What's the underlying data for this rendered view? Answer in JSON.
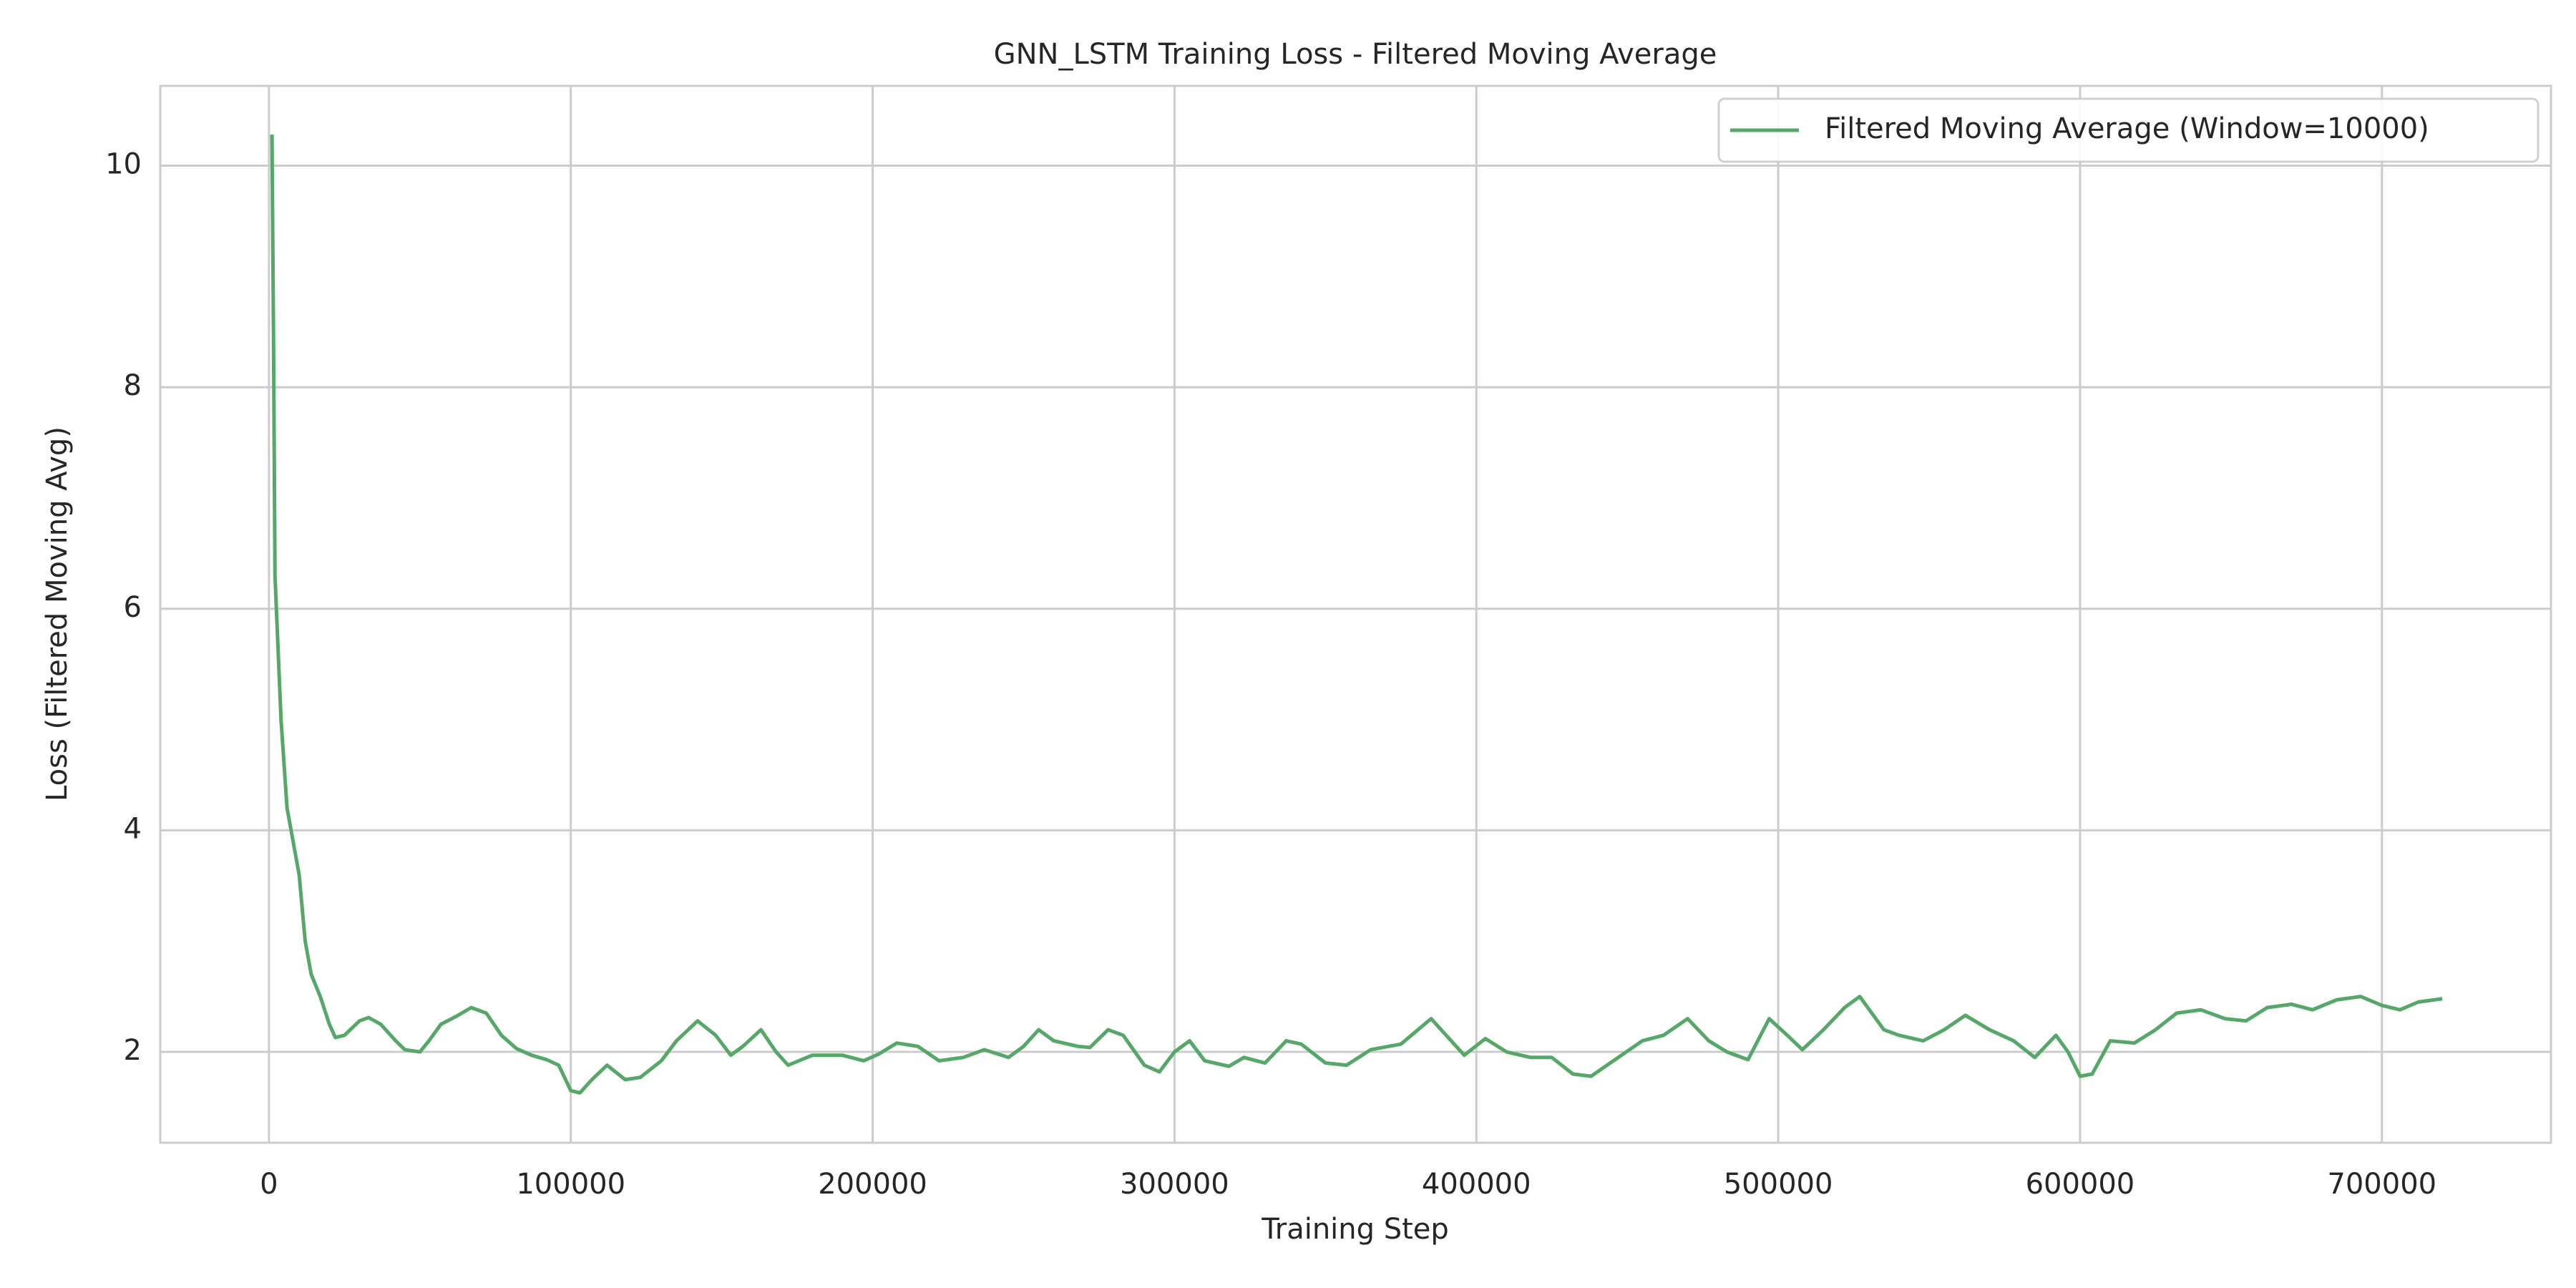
{
  "chart_data": {
    "type": "line",
    "title": "GNN_LSTM Training Loss - Filtered Moving Average",
    "x_label": "Training Step",
    "y_label": "Loss (Filtered Moving Avg)",
    "x": [
      1000,
      1500,
      2000,
      4000,
      6000,
      8000,
      10000,
      12000,
      14000,
      17000,
      20000,
      22000,
      25000,
      30000,
      33000,
      37000,
      42000,
      45000,
      50000,
      53000,
      57000,
      62000,
      67000,
      72000,
      77000,
      82000,
      87000,
      92000,
      96000,
      100000,
      103000,
      107000,
      112000,
      118000,
      123000,
      130000,
      135000,
      142000,
      148000,
      153000,
      157000,
      163000,
      168000,
      172000,
      180000,
      190000,
      197000,
      202000,
      208000,
      215000,
      222000,
      230000,
      237000,
      245000,
      250000,
      255000,
      260000,
      268000,
      272000,
      278000,
      283000,
      290000,
      295000,
      300000,
      305000,
      310000,
      318000,
      323000,
      330000,
      337000,
      342000,
      350000,
      357000,
      365000,
      375000,
      385000,
      390000,
      396000,
      403000,
      410000,
      418000,
      425000,
      432000,
      438000,
      447000,
      455000,
      462000,
      470000,
      477000,
      483000,
      490000,
      497000,
      503000,
      508000,
      515000,
      522000,
      527000,
      535000,
      540000,
      548000,
      555000,
      562000,
      570000,
      578000,
      585000,
      592000,
      596000,
      600000,
      604000,
      610000,
      618000,
      625000,
      632000,
      640000,
      648000,
      655000,
      662000,
      670000,
      677000,
      685000,
      693000,
      700000,
      706000,
      712000,
      720000
    ],
    "series": [
      {
        "name": "Filtered Moving Average (Window=10000)",
        "color": "#55a868",
        "values": [
          10.28,
          8.5,
          6.3,
          5.0,
          4.2,
          3.9,
          3.6,
          3.0,
          2.7,
          2.5,
          2.25,
          2.13,
          2.15,
          2.28,
          2.31,
          2.25,
          2.1,
          2.02,
          2.0,
          2.1,
          2.25,
          2.32,
          2.4,
          2.35,
          2.15,
          2.03,
          1.97,
          1.93,
          1.88,
          1.65,
          1.63,
          1.75,
          1.88,
          1.75,
          1.77,
          1.92,
          2.1,
          2.28,
          2.15,
          1.97,
          2.05,
          2.2,
          2.0,
          1.88,
          1.97,
          1.97,
          1.92,
          1.98,
          2.08,
          2.05,
          1.92,
          1.95,
          2.02,
          1.95,
          2.05,
          2.2,
          2.1,
          2.05,
          2.04,
          2.2,
          2.15,
          1.88,
          1.82,
          2.0,
          2.1,
          1.92,
          1.87,
          1.95,
          1.9,
          2.1,
          2.07,
          1.9,
          1.88,
          2.02,
          2.07,
          2.3,
          2.15,
          1.97,
          2.12,
          2.0,
          1.95,
          1.95,
          1.8,
          1.78,
          1.95,
          2.1,
          2.15,
          2.3,
          2.1,
          2.0,
          1.93,
          2.3,
          2.15,
          2.02,
          2.2,
          2.4,
          2.5,
          2.2,
          2.15,
          2.1,
          2.2,
          2.33,
          2.2,
          2.1,
          1.95,
          2.15,
          2.0,
          1.78,
          1.8,
          2.1,
          2.08,
          2.2,
          2.35,
          2.38,
          2.3,
          2.28,
          2.4,
          2.43,
          2.38,
          2.47,
          2.5,
          2.42,
          2.38,
          2.45,
          2.48
        ]
      }
    ],
    "xlim": [
      -36000,
      756000
    ],
    "ylim": [
      1.18,
      10.72
    ],
    "xticks": [
      0,
      100000,
      200000,
      300000,
      400000,
      500000,
      600000,
      700000
    ],
    "yticks": [
      2,
      4,
      6,
      8,
      10
    ],
    "grid": true,
    "legend": "upper right"
  }
}
